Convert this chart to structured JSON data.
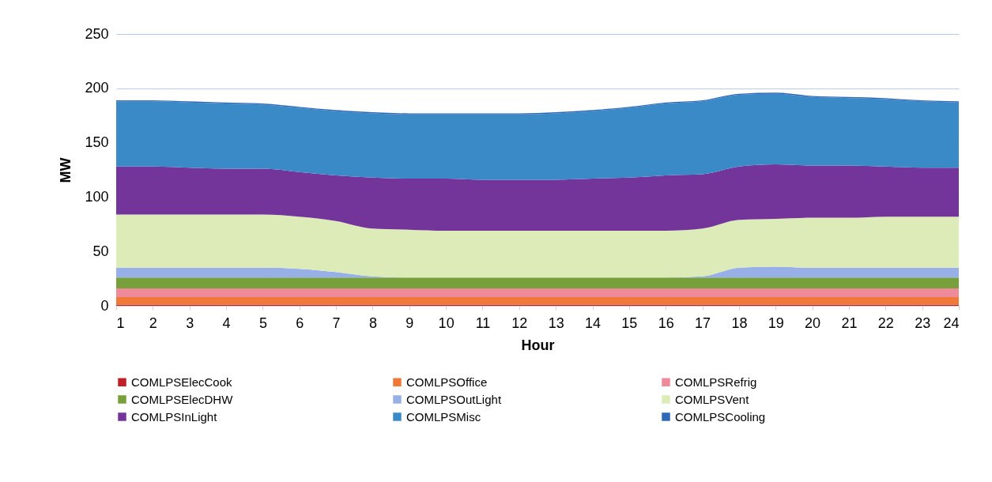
{
  "chart_data": {
    "type": "area",
    "stacked": true,
    "xlabel": "Hour",
    "ylabel": "MW",
    "x": [
      1,
      2,
      3,
      4,
      5,
      6,
      7,
      8,
      9,
      10,
      11,
      12,
      13,
      14,
      15,
      16,
      17,
      18,
      19,
      20,
      21,
      22,
      23,
      24
    ],
    "xlim": [
      1,
      24
    ],
    "xticks": [
      1,
      2,
      3,
      4,
      5,
      6,
      7,
      8,
      9,
      10,
      11,
      12,
      13,
      14,
      15,
      16,
      17,
      18,
      19,
      20,
      21,
      22,
      23,
      24
    ],
    "ylim": [
      0,
      250
    ],
    "yticks": [
      0,
      50,
      100,
      150,
      200,
      250
    ],
    "grid": "y",
    "legend": "bottom",
    "series": [
      {
        "name": "COMLPSElecCook",
        "color": "#c0202a",
        "values": [
          1,
          1,
          1,
          1,
          1,
          1,
          1,
          1,
          1,
          1,
          1,
          1,
          1,
          1,
          1,
          1,
          1,
          1,
          1,
          1,
          1,
          1,
          1,
          1
        ]
      },
      {
        "name": "COMLPSOffice",
        "color": "#f07838",
        "values": [
          7,
          7,
          7,
          7,
          7,
          7,
          7,
          7,
          7,
          7,
          7,
          7,
          7,
          7,
          7,
          7,
          7,
          7,
          7,
          7,
          7,
          7,
          7,
          7
        ]
      },
      {
        "name": "COMLPSRefrig",
        "color": "#ee8a9a",
        "values": [
          8,
          8,
          8,
          8,
          8,
          8,
          8,
          8,
          8,
          8,
          8,
          8,
          8,
          8,
          8,
          8,
          8,
          8,
          8,
          8,
          8,
          8,
          8,
          8
        ]
      },
      {
        "name": "COMLPSElecDHW",
        "color": "#77a03c",
        "values": [
          10,
          10,
          10,
          10,
          10,
          10,
          10,
          10,
          10,
          10,
          10,
          10,
          10,
          10,
          10,
          10,
          10,
          10,
          10,
          10,
          10,
          10,
          10,
          10
        ]
      },
      {
        "name": "COMLPSOutLight",
        "color": "#98b0e8",
        "values": [
          9,
          9,
          9,
          9,
          9,
          8,
          5,
          1,
          0,
          0,
          0,
          0,
          0,
          0,
          0,
          0,
          1,
          9,
          10,
          9,
          9,
          9,
          9,
          9
        ]
      },
      {
        "name": "COMLPSVent",
        "color": "#dcebb8",
        "values": [
          49,
          49,
          49,
          49,
          49,
          48,
          47,
          44,
          44,
          43,
          43,
          43,
          43,
          43,
          43,
          43,
          44,
          44,
          44,
          46,
          46,
          47,
          47,
          47
        ]
      },
      {
        "name": "COMLPSInLight",
        "color": "#73359a",
        "values": [
          44,
          44,
          43,
          42,
          42,
          41,
          42,
          47,
          47,
          48,
          47,
          47,
          47,
          48,
          49,
          51,
          50,
          49,
          50,
          48,
          48,
          46,
          45,
          45
        ]
      },
      {
        "name": "COMLPSMisc",
        "color": "#3a8ac8",
        "values": [
          60,
          60,
          60,
          60,
          59,
          59,
          59,
          59,
          59,
          59,
          60,
          60,
          61,
          62,
          64,
          66,
          67,
          66,
          65,
          63,
          62,
          62,
          61,
          60
        ]
      },
      {
        "name": "COMLPSCooling",
        "color": "#2e68b8",
        "values": [
          1,
          1,
          1,
          1,
          1,
          1,
          1,
          1,
          1,
          1,
          1,
          1,
          1,
          1,
          1,
          1,
          1,
          1,
          1,
          1,
          1,
          1,
          1,
          1
        ]
      }
    ]
  }
}
